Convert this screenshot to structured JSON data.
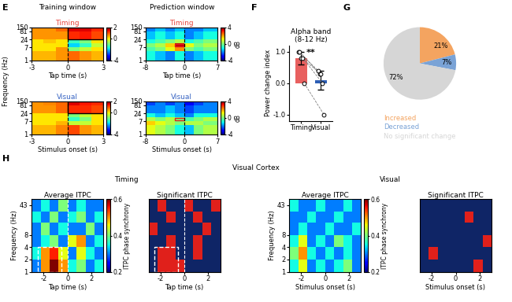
{
  "panel_labels": [
    "E",
    "F",
    "G",
    "H"
  ],
  "headers": {
    "E": [
      "Training window",
      "Prediction window"
    ],
    "H": [
      "Timing",
      "Visual Cortex",
      "Visual"
    ]
  },
  "chart_data": [
    {
      "type": "heatmap",
      "title": {
        "text": "Timing",
        "color": "#e8473f"
      },
      "xlabel": "Tap time (s)",
      "ylabel": "Frequency (Hz)",
      "log": "y",
      "color": "jet",
      "x": [
        -3,
        -2,
        -1,
        0,
        1,
        2,
        3
      ],
      "y": [
        1,
        4,
        7,
        14,
        24,
        81,
        150
      ],
      "cells": [
        [
          0.3,
          0.3,
          0.5,
          0.8,
          0.5,
          0.3
        ],
        [
          0,
          0,
          0.5,
          -1,
          -0.5,
          0
        ],
        [
          0,
          0,
          0,
          -2,
          -1.5,
          -0.5
        ],
        [
          0,
          0.2,
          0,
          -1.5,
          -1,
          0
        ],
        [
          0.5,
          0.5,
          0.5,
          1.2,
          1.3,
          1.0
        ],
        [
          0.5,
          0.5,
          0.8,
          1.5,
          1.5,
          1.2
        ]
      ],
      "xlim": [
        -3,
        3
      ],
      "ylim": [
        1,
        150
      ],
      "xticks": [
        -3,
        0,
        3
      ],
      "yticks": [
        1,
        7,
        24,
        81,
        150
      ],
      "colorbar": {
        "range": [
          -4,
          2
        ],
        "ticks": [
          -4,
          0,
          2
        ]
      },
      "vlines": {
        "x": [
          0
        ],
        "color": "black",
        "line_style": "dashed"
      },
      "box": {
        "x": [
          0,
          3
        ],
        "y": [
          24,
          150
        ],
        "color": "black",
        "line_style": "solid"
      }
    },
    {
      "type": "heatmap",
      "title": {
        "text": "Timing",
        "color": "#e8473f"
      },
      "xlabel": "Tap time (s)",
      "log": "y",
      "color": "jet",
      "x": [
        -8,
        -6,
        -4,
        -2,
        0,
        2,
        4,
        7
      ],
      "y": [
        1,
        4,
        7,
        14,
        24,
        81,
        150
      ],
      "cells": [
        [
          -1,
          -1.5,
          -2,
          -1,
          -2,
          -1.5,
          -1
        ],
        [
          -0.5,
          0,
          1,
          2,
          0,
          -0.5,
          0
        ],
        [
          0,
          0.5,
          1.5,
          3.5,
          1,
          0,
          0.5
        ],
        [
          -1,
          -0.5,
          0,
          0.5,
          -1,
          -0.5,
          0
        ],
        [
          -1.5,
          -1,
          -1.5,
          -1,
          -2,
          -1.5,
          -1
        ],
        [
          -2,
          -1.5,
          -2,
          -1.5,
          -2,
          -2,
          -1.5
        ]
      ],
      "xlim": [
        -8,
        7
      ],
      "ylim": [
        1,
        150
      ],
      "xticks": [
        -8,
        0,
        7
      ],
      "yticks": [
        1,
        7,
        24,
        81,
        150
      ],
      "colorbar": {
        "range": [
          -4,
          4
        ],
        "ticks": [
          -4,
          0,
          4
        ],
        "label": "dB"
      },
      "vlines": {
        "x": [
          0
        ],
        "color": "black",
        "line_style": "dashed"
      },
      "box": {
        "x": [
          -2,
          0
        ],
        "y": [
          8,
          12
        ],
        "color": "#e02020",
        "line_style": "solid"
      }
    },
    {
      "type": "heatmap",
      "title": {
        "text": "Visual",
        "color": "#3a66c4"
      },
      "xlabel": "Stimulus onset (s)",
      "log": "y",
      "color": "jet",
      "x": [
        -3,
        -2,
        -1,
        0,
        1,
        2,
        3
      ],
      "y": [
        1,
        4,
        7,
        14,
        24,
        81,
        150
      ],
      "cells": [
        [
          0.3,
          0.3,
          0.6,
          1.0,
          0.5,
          0.3
        ],
        [
          0,
          0,
          0.3,
          -0.5,
          -0.5,
          0
        ],
        [
          0,
          0,
          0,
          -1.5,
          -1,
          0
        ],
        [
          0,
          0,
          0,
          -1,
          -0.5,
          0
        ],
        [
          0.5,
          0.5,
          0.8,
          1.2,
          1.2,
          1.0
        ],
        [
          0.5,
          0.6,
          0.8,
          1.5,
          1.3,
          1.2
        ]
      ],
      "xlim": [
        -3,
        3
      ],
      "ylim": [
        1,
        150
      ],
      "xticks": [
        -3,
        0,
        3
      ],
      "yticks": [
        1,
        7,
        24,
        81,
        150
      ],
      "colorbar": {
        "range": [
          -4,
          2
        ],
        "ticks": [
          -4,
          0,
          2
        ]
      },
      "vlines": {
        "x": [
          0
        ],
        "color": "black",
        "line_style": "dashed"
      },
      "box": {
        "x": [
          0,
          3
        ],
        "y": [
          24,
          150
        ],
        "color": "black",
        "line_style": "solid"
      }
    },
    {
      "type": "heatmap",
      "title": {
        "text": "Visual",
        "color": "#3a66c4"
      },
      "xlabel": "Stimulus onset (s)",
      "log": "y",
      "color": "jet",
      "x": [
        -8,
        -6,
        -4,
        -2,
        0,
        2,
        4,
        7
      ],
      "y": [
        1,
        4,
        7,
        14,
        24,
        81,
        150
      ],
      "cells": [
        [
          1,
          0.5,
          0,
          -1,
          -1.5,
          0,
          0.5
        ],
        [
          1.5,
          1,
          0.5,
          0,
          0.5,
          0.5,
          0
        ],
        [
          0.5,
          0,
          0.5,
          0,
          -0.5,
          0,
          0.5
        ],
        [
          -1,
          -1.5,
          -1,
          -1.5,
          -2,
          -1,
          -1
        ],
        [
          -2,
          -2,
          -1.5,
          -2,
          -2.5,
          -2,
          -2
        ],
        [
          -2.5,
          -2,
          -2.5,
          -2,
          -3,
          -2.5,
          -2
        ]
      ],
      "xlim": [
        -8,
        7
      ],
      "ylim": [
        1,
        150
      ],
      "xticks": [
        -8,
        0,
        7
      ],
      "yticks": [
        1,
        7,
        24,
        81,
        150
      ],
      "colorbar": {
        "range": [
          -4,
          4
        ],
        "ticks": [
          -4,
          0,
          4
        ],
        "label": "dB"
      },
      "vlines": {
        "x": [
          0
        ],
        "color": "black",
        "line_style": "dashed"
      },
      "box": {
        "x": [
          -2,
          0
        ],
        "y": [
          8,
          12
        ],
        "color": "#e02020",
        "line_style": "solid"
      }
    },
    {
      "type": "bar",
      "title": "Alpha band\n(8-12 Hz)",
      "ylabel": "Power change index",
      "categories": [
        "Timing",
        "Visual"
      ],
      "values": [
        0.8,
        0.1
      ],
      "colors": [
        "#e8605f",
        "#2e5fb5"
      ],
      "errors": [
        0.2,
        0.3
      ],
      "points": [
        [
          1.0,
          1.0,
          0.8,
          0.8,
          0.0
        ],
        [
          0.4,
          0.3,
          0.3,
          0.0,
          -1.0
        ]
      ],
      "marker": "o",
      "line_style": "dashed",
      "annotations": [
        {
          "text": "**"
        }
      ],
      "ylim": [
        -1.2,
        1.2
      ],
      "yticks": [
        {
          "value": -1,
          "label": "-1.0"
        },
        {
          "value": 0,
          "label": "0.0"
        },
        {
          "value": 1,
          "label": "1.0"
        }
      ]
    },
    {
      "type": "pie",
      "categories": [
        "Increased",
        "Decreased",
        "No significant change"
      ],
      "values": [
        21,
        7,
        72
      ],
      "value_labels": [
        "21%",
        "7%",
        "72%"
      ],
      "colors": [
        "#f4a460",
        "#7aa3d6",
        "#d6d6d6"
      ],
      "legend": "bottom"
    },
    {
      "type": "heatmap",
      "title": {
        "text": "Average ITPC",
        "color": "black"
      },
      "xlabel": "Tap time (s)",
      "ylabel": "Frequency (Hz)",
      "log": "y",
      "color": "jet",
      "x": [
        -3,
        -2.25,
        -1.5,
        -0.75,
        0,
        0.75,
        1.5,
        2.25,
        3
      ],
      "y": [
        1,
        2,
        4,
        8,
        16,
        30,
        60
      ],
      "cells": [
        [
          0.3,
          0.5,
          0.6,
          0.5,
          0.35,
          0.4,
          0.3,
          0.35
        ],
        [
          0.35,
          0.5,
          0.55,
          0.45,
          0.3,
          0.45,
          0.35,
          0.3
        ],
        [
          0.3,
          0.35,
          0.4,
          0.3,
          0.45,
          0.5,
          0.3,
          0.35
        ],
        [
          0.3,
          0.4,
          0.3,
          0.35,
          0.3,
          0.3,
          0.4,
          0.3
        ],
        [
          0.35,
          0.3,
          0.4,
          0.3,
          0.35,
          0.4,
          0.3,
          0.35
        ],
        [
          0.3,
          0.35,
          0.3,
          0.4,
          0.3,
          0.35,
          0.3,
          0.3
        ]
      ],
      "xlim": [
        -3,
        3
      ],
      "ylim": [
        1,
        60
      ],
      "xticks": [
        -2,
        0,
        2
      ],
      "yticks": [
        1,
        2,
        4,
        8,
        43
      ],
      "colorbar": {
        "range": [
          0.2,
          0.6
        ],
        "ticks": [
          0.2,
          0.4,
          0.6
        ],
        "label": "ITPC phase synchrony"
      },
      "vlines": {
        "x": [
          0
        ],
        "color": "white",
        "line_style": "dashed"
      },
      "box": {
        "x": [
          -2.5,
          -0.5
        ],
        "y": [
          1,
          4
        ],
        "color": "white",
        "line_style": "dashed"
      }
    },
    {
      "type": "heatmap",
      "title": {
        "text": "Significant ITPC",
        "color": "black"
      },
      "xlabel": "Tap time (s)",
      "log": "y",
      "colors": [
        "#0f2566",
        "#e0201b"
      ],
      "tick_labels": "x",
      "x": [
        -3,
        -2.25,
        -1.5,
        -0.75,
        0,
        0.75,
        1.5,
        2.25,
        3
      ],
      "y": [
        1,
        2,
        4,
        8,
        16,
        30,
        60
      ],
      "cells": [
        [
          0,
          1,
          1,
          1,
          0,
          0,
          0,
          0
        ],
        [
          0,
          1,
          1,
          0,
          0,
          1,
          0,
          0
        ],
        [
          0,
          0,
          1,
          0,
          0,
          1,
          0,
          0
        ],
        [
          1,
          0,
          0,
          0,
          0,
          0,
          1,
          0
        ],
        [
          0,
          0,
          1,
          0,
          0,
          1,
          0,
          0
        ],
        [
          0,
          1,
          0,
          0,
          1,
          0,
          0,
          1
        ]
      ],
      "xlim": [
        -3,
        3
      ],
      "ylim": [
        1,
        60
      ],
      "xticks": [
        -2,
        0,
        2
      ],
      "vlines": {
        "x": [
          0
        ],
        "color": "white",
        "line_style": "dashed"
      },
      "box": {
        "x": [
          -2.5,
          -0.5
        ],
        "y": [
          1,
          4
        ],
        "color": "white",
        "line_style": "dashed"
      }
    },
    {
      "type": "heatmap",
      "title": {
        "text": "Average ITPC",
        "color": "black"
      },
      "xlabel": "Stimulus onset (s)",
      "ylabel": "Frequency (Hz)",
      "log": "y",
      "color": "jet",
      "x": [
        -3,
        -2.25,
        -1.5,
        -0.75,
        0,
        0.75,
        1.5,
        2.25,
        3
      ],
      "y": [
        1,
        2,
        4,
        8,
        16,
        30,
        60
      ],
      "cells": [
        [
          0.35,
          0.45,
          0.3,
          0.35,
          0.3,
          0.35,
          0.4,
          0.3
        ],
        [
          0.4,
          0.5,
          0.35,
          0.3,
          0.35,
          0.3,
          0.35,
          0.3
        ],
        [
          0.35,
          0.45,
          0.3,
          0.35,
          0.3,
          0.4,
          0.35,
          0.3
        ],
        [
          0.3,
          0.35,
          0.3,
          0.3,
          0.35,
          0.3,
          0.3,
          0.35
        ],
        [
          0.3,
          0.3,
          0.35,
          0.3,
          0.3,
          0.35,
          0.3,
          0.3
        ],
        [
          0.35,
          0.3,
          0.3,
          0.35,
          0.3,
          0.3,
          0.35,
          0.3
        ]
      ],
      "xlim": [
        -3,
        3
      ],
      "ylim": [
        1,
        60
      ],
      "xticks": [
        -2,
        0,
        2
      ],
      "yticks": [
        1,
        2,
        4,
        8,
        43
      ],
      "colorbar": {
        "range": [
          0.2,
          0.6
        ],
        "ticks": [
          0.2,
          0.4,
          0.6
        ],
        "label": "ITPC phase synchrony"
      }
    },
    {
      "type": "heatmap",
      "title": {
        "text": "Significant ITPC",
        "color": "black"
      },
      "xlabel": "Stimulus onset (s)",
      "log": "y",
      "colors": [
        "#0f2566",
        "#e0201b"
      ],
      "tick_labels": "x",
      "x": [
        -3,
        -2.25,
        -1.5,
        -0.75,
        0,
        0.75,
        1.5,
        2.25,
        3
      ],
      "y": [
        1,
        2,
        4,
        8,
        16,
        30,
        60
      ],
      "cells": [
        [
          0,
          0,
          0,
          0,
          0,
          0,
          1,
          0
        ],
        [
          0,
          1,
          0,
          0,
          0,
          0,
          0,
          0
        ],
        [
          0,
          0,
          0,
          0,
          0,
          0,
          0,
          1
        ],
        [
          0,
          0,
          0,
          0,
          0,
          0,
          0,
          0
        ],
        [
          0,
          0,
          0,
          0,
          0,
          1,
          0,
          0
        ],
        [
          0,
          0,
          0,
          0,
          0,
          0,
          0,
          0
        ]
      ],
      "xlim": [
        -3,
        3
      ],
      "ylim": [
        1,
        60
      ],
      "xticks": [
        -2,
        0,
        2
      ]
    }
  ]
}
